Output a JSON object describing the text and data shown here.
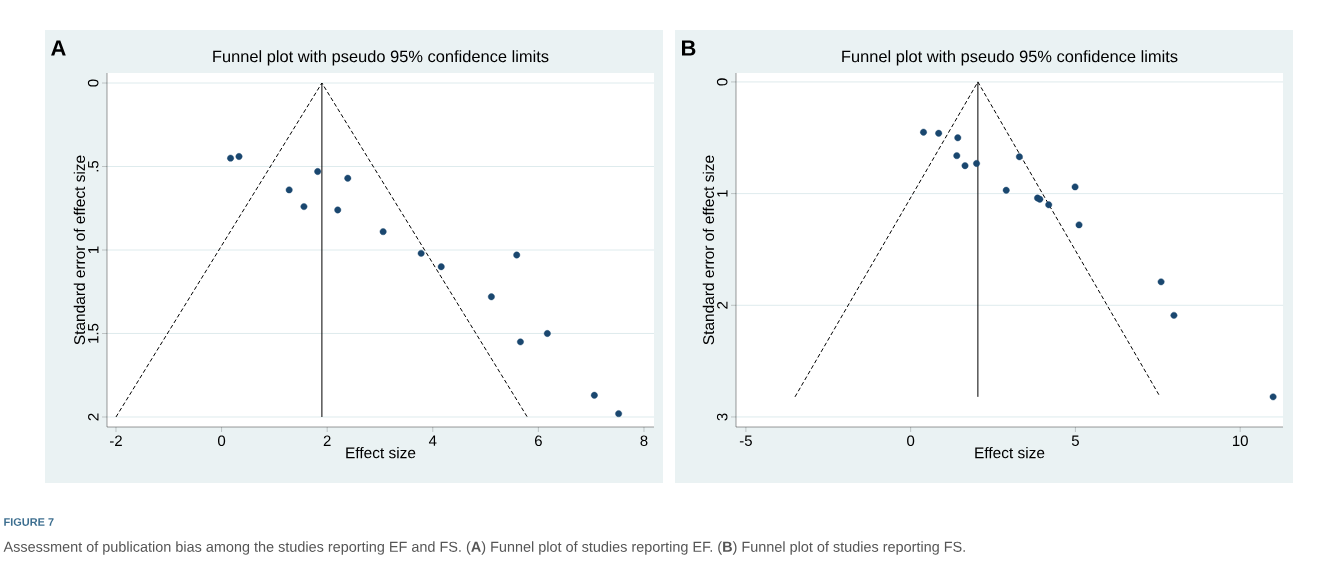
{
  "chart_data": [
    {
      "type": "scatter",
      "title": "Funnel plot with pseudo 95% confidence limits",
      "xlabel": "Effect size",
      "ylabel": "Standard error of effect size",
      "annotations": [
        "A",
        "FIGURE 7",
        "Assessment of publication bias among the studies reporting EF and FS. (**A**) Funnel plot of studies reporting EF. (**B**) Funnel plot of studies reporting FS."
      ],
      "xlim": [
        -2.17,
        8.19
      ],
      "ylim": [
        2.06,
        -0.06
      ],
      "xticks": [
        -2,
        0,
        2,
        4,
        6,
        8
      ],
      "yticks": [
        0,
        {
          "value": 0.5,
          "label": ".5"
        },
        1,
        1.5,
        2
      ],
      "grid": "y",
      "series": [
        {
          "type": "line",
          "color": "#000000",
          "line_style": "dashed",
          "marker": "none",
          "x": [
            -2.0,
            1.9,
            5.79
          ],
          "values": [
            2.0,
            0.0,
            2.0
          ]
        },
        {
          "type": "line",
          "color": "#000000",
          "line_style": "solid",
          "marker": "none",
          "x": [
            1.9,
            1.9
          ],
          "values": [
            0.0,
            2.0
          ]
        },
        {
          "color": "#1a476f",
          "marker": "circle",
          "x": [
            0.17,
            0.33,
            1.82,
            2.39,
            1.28,
            1.56,
            2.2,
            3.06,
            3.78,
            4.16,
            5.59,
            5.11,
            6.17,
            5.66,
            7.06,
            7.52
          ],
          "values": [
            0.45,
            0.44,
            0.53,
            0.57,
            0.64,
            0.74,
            0.76,
            0.89,
            1.02,
            1.1,
            1.03,
            1.28,
            1.5,
            1.55,
            1.87,
            1.98
          ]
        }
      ]
    },
    {
      "type": "scatter",
      "title": "Funnel plot with pseudo 95% confidence limits",
      "xlabel": "Effect size",
      "ylabel": "Standard error of effect size",
      "annotations": [
        "B"
      ],
      "xlim": [
        -5.3,
        11.3
      ],
      "ylim": [
        3.09,
        -0.08
      ],
      "xticks": [
        -5,
        0,
        5,
        10
      ],
      "yticks": [
        0,
        1,
        2,
        3
      ],
      "grid": "y",
      "series": [
        {
          "type": "line",
          "color": "#000000",
          "line_style": "dashed",
          "marker": "none",
          "x": [
            -3.51,
            2.04,
            7.57
          ],
          "values": [
            2.82,
            0.0,
            2.82
          ]
        },
        {
          "type": "line",
          "color": "#000000",
          "line_style": "solid",
          "marker": "none",
          "x": [
            2.04,
            2.04
          ],
          "values": [
            0.0,
            2.82
          ]
        },
        {
          "color": "#1a476f",
          "marker": "circle",
          "x": [
            0.39,
            0.85,
            1.43,
            1.4,
            1.65,
            2.0,
            3.3,
            2.9,
            4.99,
            3.85,
            3.92,
            4.19,
            5.11,
            7.6,
            7.99,
            11.0
          ],
          "values": [
            0.45,
            0.46,
            0.5,
            0.66,
            0.75,
            0.73,
            0.67,
            0.97,
            0.94,
            1.04,
            1.05,
            1.1,
            1.28,
            1.79,
            2.09,
            2.82
          ]
        }
      ]
    }
  ]
}
